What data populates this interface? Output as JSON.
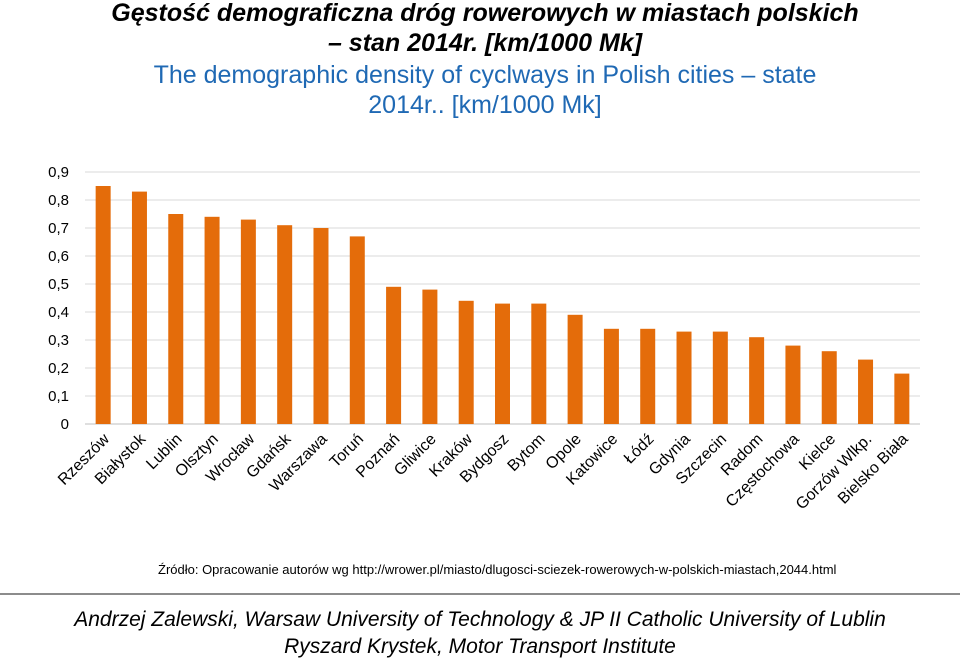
{
  "title": {
    "pl_line1": "Gęstość demograficzna dróg rowerowych w miastach polskich",
    "pl_line2": "– stan 2014r. [km/1000 Mk]",
    "en_line1": "The demographic density of cyclways in Polish cities – state",
    "en_line2": "2014r.. [km/1000 Mk]"
  },
  "chart_data": {
    "type": "bar",
    "categories": [
      "Rzeszów",
      "Białystok",
      "Lublin",
      "Olsztyn",
      "Wrocław",
      "Gdańsk",
      "Warszawa",
      "Toruń",
      "Poznań",
      "Gliwice",
      "Kraków",
      "Bydgosz",
      "Bytom",
      "Opole",
      "Katowice",
      "Łódź",
      "Gdynia",
      "Szczecin",
      "Radom",
      "Częstochowa",
      "Kielce",
      "Gorzów Wlkp.",
      "Bielsko Biała"
    ],
    "values": [
      0.85,
      0.83,
      0.75,
      0.74,
      0.73,
      0.71,
      0.7,
      0.67,
      0.49,
      0.48,
      0.44,
      0.43,
      0.43,
      0.39,
      0.34,
      0.34,
      0.33,
      0.33,
      0.31,
      0.28,
      0.26,
      0.23,
      0.18
    ],
    "yticks": [
      "0",
      "0,1",
      "0,2",
      "0,3",
      "0,4",
      "0,5",
      "0,6",
      "0,7",
      "0,8",
      "0,9"
    ],
    "ylim": [
      0,
      0.9
    ],
    "grid": true,
    "legend": "none",
    "bar_color": "#e46c0a",
    "grid_color": "#d9d9d9"
  },
  "source": "Źródło: Opracowanie autorów wg http://wrower.pl/miasto/dlugosci-sciezek-rowerowych-w-polskich-miastach,2044.html",
  "credits": {
    "line1": "Andrzej Zalewski, Warsaw University of Technology & JP II Catholic University of Lublin",
    "line2": "Ryszard Krystek, Motor Transport Institute"
  }
}
